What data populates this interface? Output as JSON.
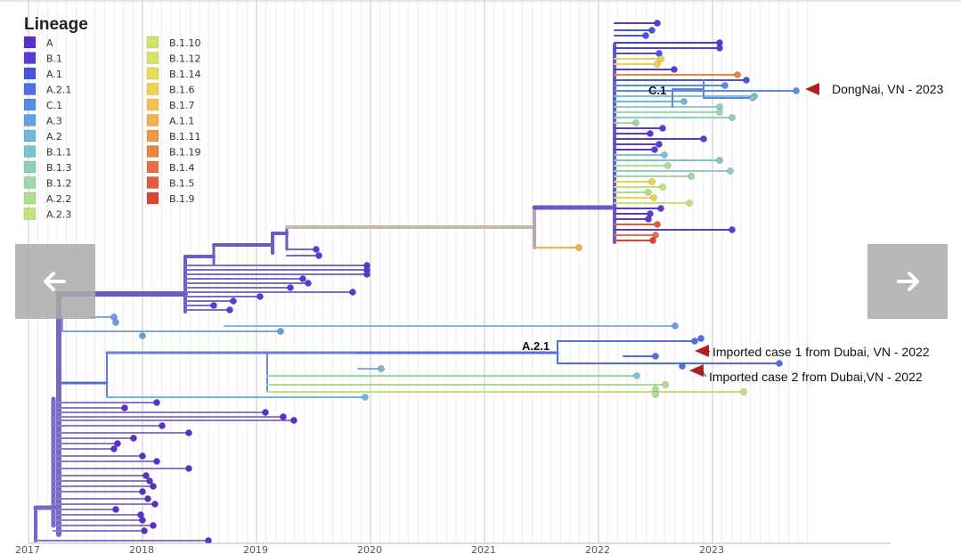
{
  "nav": {
    "prev_icon": "arrow-left-icon",
    "next_icon": "arrow-right-icon"
  },
  "chart_data": {
    "type": "phylogenetic-tree",
    "title": "",
    "legend": {
      "title": "Lineage",
      "placement": "top-left",
      "entries": [
        {
          "label": "A",
          "color": "#5b2fc9"
        },
        {
          "label": "B.1",
          "color": "#5a3ad6"
        },
        {
          "label": "A.1",
          "color": "#4a53e0"
        },
        {
          "label": "A.2.1",
          "color": "#4f6ee8"
        },
        {
          "label": "C.1",
          "color": "#5a8ae8"
        },
        {
          "label": "A.3",
          "color": "#65a0e2"
        },
        {
          "label": "A.2",
          "color": "#72b6dc"
        },
        {
          "label": "B.1.1",
          "color": "#7ec4cf"
        },
        {
          "label": "B.1.3",
          "color": "#8fcfbd"
        },
        {
          "label": "B.1.2",
          "color": "#9ed8a6"
        },
        {
          "label": "A.2.2",
          "color": "#b0de8f"
        },
        {
          "label": "A.2.3",
          "color": "#c2e27c"
        },
        {
          "label": "B.1.10",
          "color": "#d0e46c"
        },
        {
          "label": "B.1.12",
          "color": "#dde260"
        },
        {
          "label": "B.1.14",
          "color": "#e6dc56"
        },
        {
          "label": "B.1.6",
          "color": "#eed250"
        },
        {
          "label": "B.1.7",
          "color": "#f1c34e"
        },
        {
          "label": "A.1.1",
          "color": "#f2b04c"
        },
        {
          "label": "B.1.11",
          "color": "#f09a48"
        },
        {
          "label": "B.1.19",
          "color": "#ec8444"
        },
        {
          "label": "B.1.4",
          "color": "#e86f40"
        },
        {
          "label": "B.1.5",
          "color": "#e35a3c"
        },
        {
          "label": "B.1.9",
          "color": "#dc4436"
        }
      ]
    },
    "x_axis": {
      "type": "date",
      "ticks": [
        "2017",
        "2018",
        "2019",
        "2020",
        "2021",
        "2022",
        "2023"
      ],
      "range": [
        2017.0,
        2023.9
      ],
      "grid": "vertical minor lines"
    },
    "clade_labels": [
      "C.1",
      "A.2.1"
    ],
    "annotations": [
      {
        "text": "DongNai, VN - 2023",
        "date": 2023.75,
        "lineage": "C.1"
      },
      {
        "text": "Imported case 1 from Dubai, VN - 2022",
        "date": 2022.9,
        "lineage": "A.2.1"
      },
      {
        "text": "Imported case 2 from Dubai,VN - 2022",
        "date": 2022.78,
        "lineage": "A.2.1"
      }
    ]
  }
}
